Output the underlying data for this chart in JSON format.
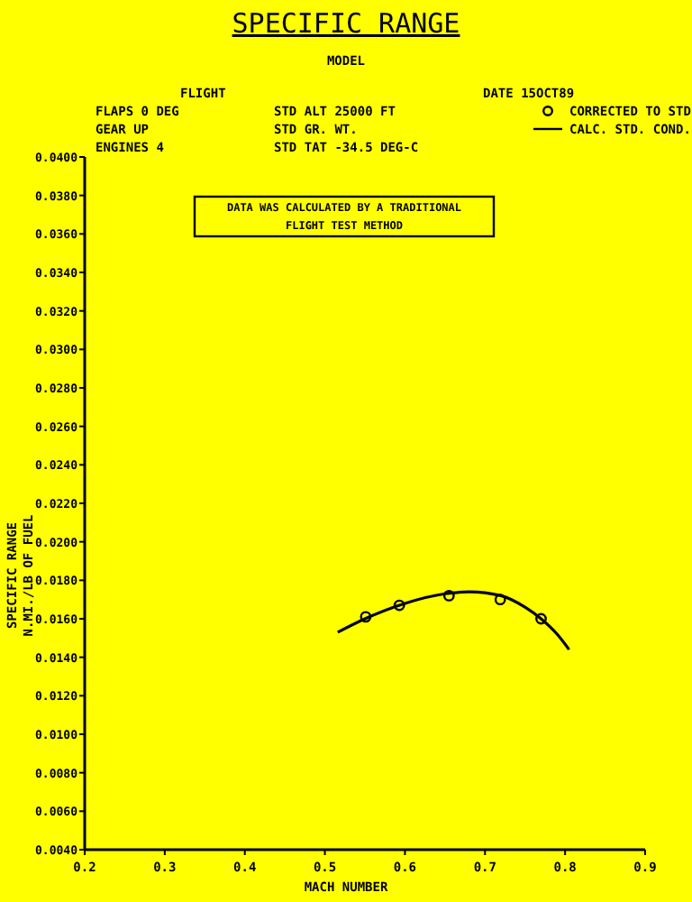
{
  "chart_data": {
    "type": "line",
    "title": "SPECIFIC RANGE",
    "xlabel": "MACH NUMBER",
    "ylabel": "SPECIFIC RANGE\nN.MI./LB OF FUEL",
    "annotations": [
      "MODEL",
      "FLIGHT",
      "DATE 15OCT89",
      "FLAPS 0 DEG",
      "GEAR UP",
      "ENGINES 4",
      "STD ALT 25000 FT",
      "STD GR. WT.",
      "STD TAT -34.5 DEG-C",
      "DATA WAS CALCULATED BY A TRADITIONAL",
      "FLIGHT TEST METHOD"
    ],
    "xlim": [
      0.2,
      0.9
    ],
    "xticks": [
      0.2,
      0.3,
      0.4,
      0.5,
      0.6,
      0.7,
      0.8,
      0.9
    ],
    "ylim": [
      0.004,
      0.04
    ],
    "yticks": [
      {
        "value": 0.004,
        "label": "0.0040"
      },
      {
        "value": 0.006,
        "label": "0.0060"
      },
      {
        "value": 0.008,
        "label": "0.0080"
      },
      {
        "value": 0.01,
        "label": "0.0100"
      },
      {
        "value": 0.012,
        "label": "0.0120"
      },
      {
        "value": 0.014,
        "label": "0.0140"
      },
      {
        "value": 0.016,
        "label": "0.0160"
      },
      {
        "value": 0.018,
        "label": "0.0180"
      },
      {
        "value": 0.02,
        "label": "0.0200"
      },
      {
        "value": 0.022,
        "label": "0.0220"
      },
      {
        "value": 0.024,
        "label": "0.0240"
      },
      {
        "value": 0.026,
        "label": "0.0260"
      },
      {
        "value": 0.028,
        "label": "0.0280"
      },
      {
        "value": 0.03,
        "label": "0.0300"
      },
      {
        "value": 0.032,
        "label": "0.0320"
      },
      {
        "value": 0.034,
        "label": "0.0340"
      },
      {
        "value": 0.036,
        "label": "0.0360"
      },
      {
        "value": 0.038,
        "label": "0.0380"
      },
      {
        "value": 0.04,
        "label": "0.0400"
      }
    ],
    "legend": "top right",
    "series": [
      {
        "name": "CORRECTED TO STD",
        "type": "scatter",
        "marker": "circle",
        "color": "#000000",
        "x": [
          0.551,
          0.593,
          0.655,
          0.719,
          0.77
        ],
        "values": [
          0.0161,
          0.0167,
          0.0172,
          0.017,
          0.016
        ]
      },
      {
        "name": "CALC. STD. COND.",
        "marker": "none",
        "color": "#000000",
        "x": [
          0.516,
          0.55,
          0.6,
          0.65,
          0.68,
          0.72,
          0.75,
          0.77,
          0.79,
          0.805
        ],
        "values": [
          0.0153,
          0.016,
          0.0168,
          0.0173,
          0.0174,
          0.0172,
          0.0166,
          0.016,
          0.0152,
          0.0144
        ]
      }
    ]
  }
}
